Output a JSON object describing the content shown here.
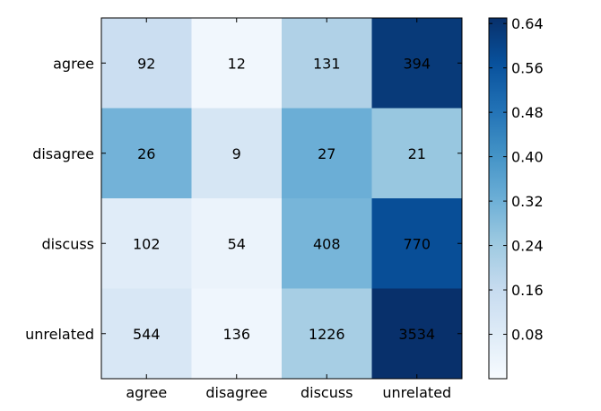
{
  "chart_data": {
    "type": "heatmap",
    "title": "",
    "xlabel": "",
    "ylabel": "",
    "x_categories": [
      "agree",
      "disagree",
      "discuss",
      "unrelated"
    ],
    "y_categories": [
      "agree",
      "disagree",
      "discuss",
      "unrelated"
    ],
    "cell_labels": [
      [
        92,
        12,
        131,
        394
      ],
      [
        26,
        9,
        27,
        21
      ],
      [
        102,
        54,
        408,
        770
      ],
      [
        544,
        136,
        1226,
        3534
      ]
    ],
    "cell_fill_values": [
      [
        0.146,
        0.019,
        0.208,
        0.626
      ],
      [
        0.313,
        0.108,
        0.325,
        0.253
      ],
      [
        0.076,
        0.04,
        0.306,
        0.577
      ],
      [
        0.1,
        0.025,
        0.225,
        0.65
      ]
    ],
    "colormap": "Blues",
    "colormap_stops": [
      "#f7fbff",
      "#deebf7",
      "#c6dbef",
      "#9ecae1",
      "#6baed6",
      "#4292c6",
      "#2171b5",
      "#08519c",
      "#08306b"
    ],
    "colorbar": {
      "range": [
        0.0,
        0.65
      ],
      "ticks": [
        0.08,
        0.16,
        0.24,
        0.32,
        0.4,
        0.48,
        0.56,
        0.64
      ],
      "tick_labels": [
        "0.08",
        "0.16",
        "0.24",
        "0.32",
        "0.40",
        "0.48",
        "0.56",
        "0.64"
      ]
    },
    "grid": false,
    "legend": "colorbar-right"
  }
}
